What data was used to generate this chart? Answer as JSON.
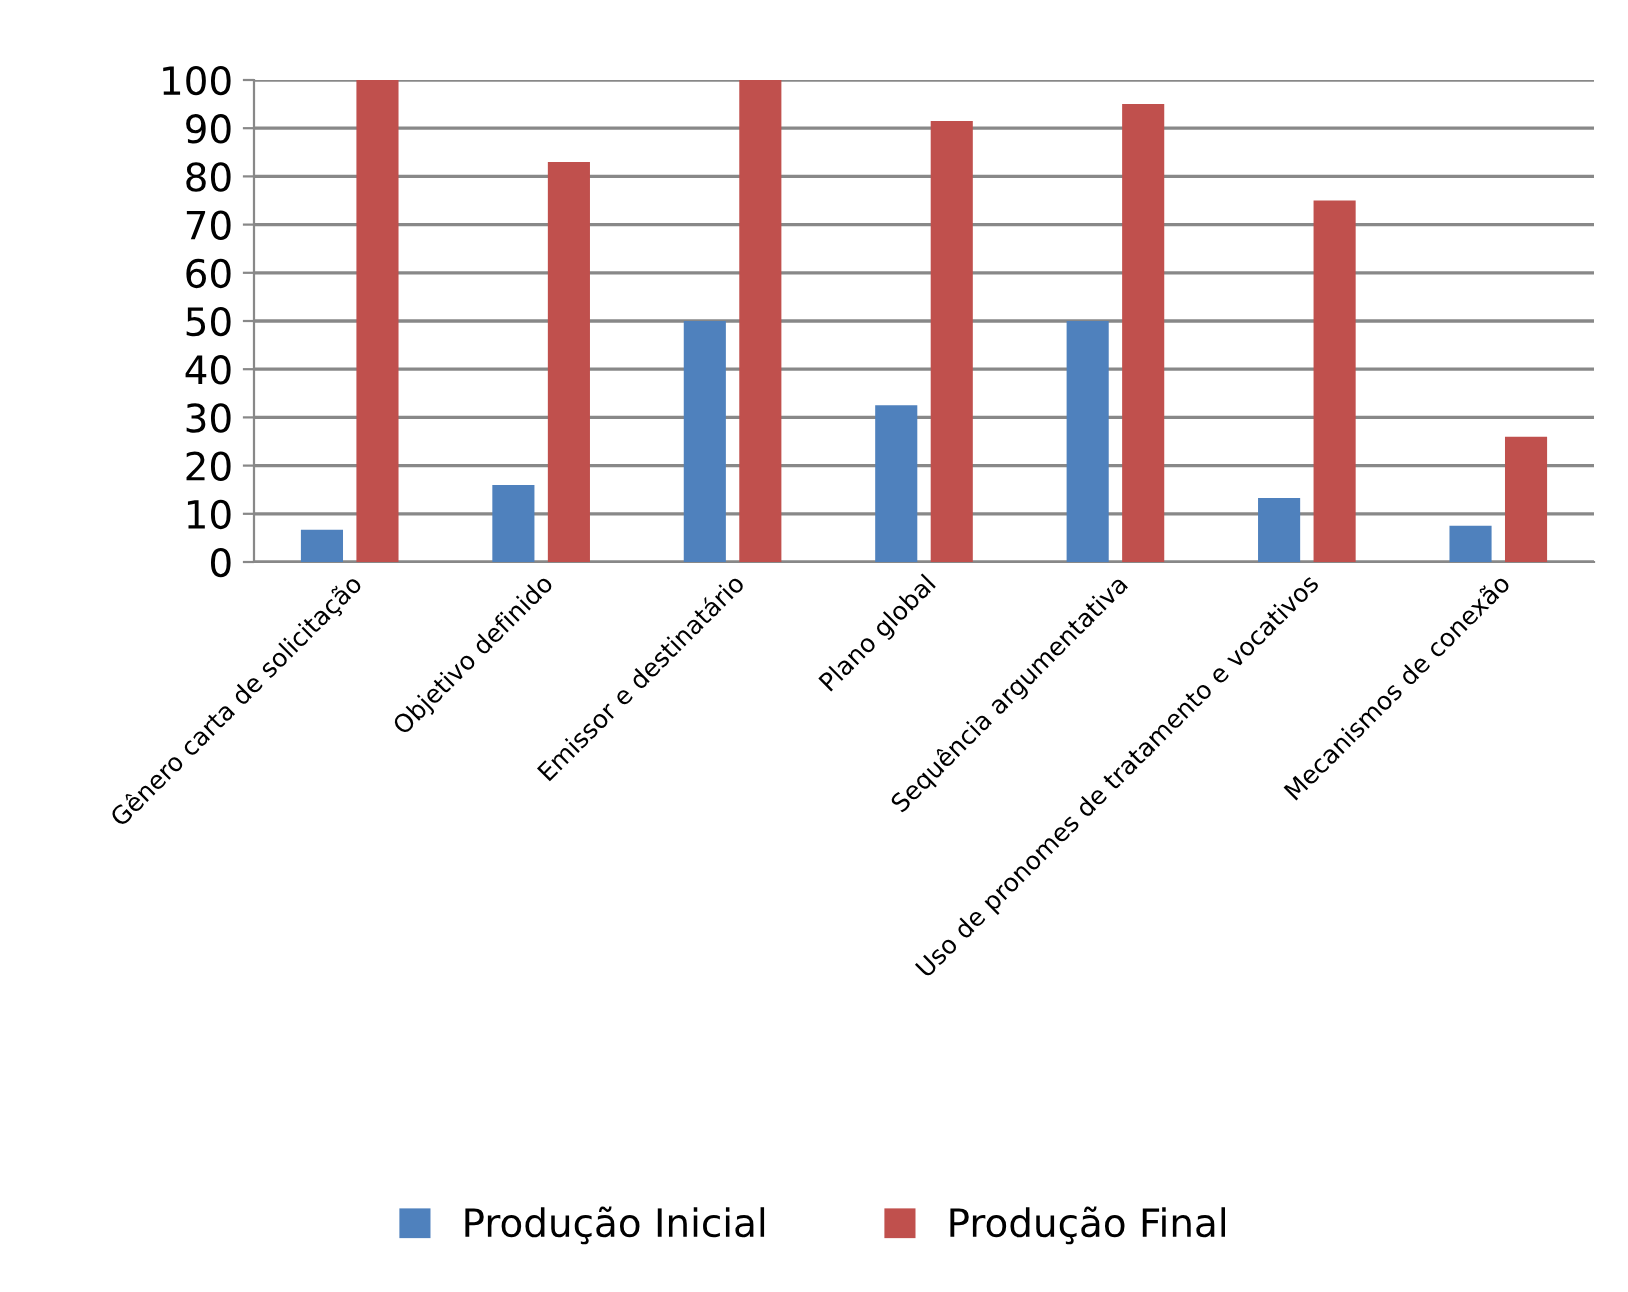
{
  "chart_data": {
    "type": "bar",
    "categories": [
      "Gênero carta de solicitação",
      "Objetivo definido",
      "Emissor e destinatário",
      "Plano global",
      "Sequência argumentativa",
      "Uso de pronomes de tratamento e vocativos",
      "Mecanismos de conexão"
    ],
    "series": [
      {
        "name": "Produção Inicial",
        "color": "#4f81bd",
        "values": [
          6.7,
          16,
          50,
          32.5,
          50,
          13.3,
          7.5
        ]
      },
      {
        "name": "Produção Final",
        "color": "#c0504d",
        "values": [
          100,
          83,
          100,
          91.5,
          95,
          75,
          26
        ]
      }
    ],
    "ylim": [
      0,
      100
    ],
    "yticks": [
      0,
      10,
      20,
      30,
      40,
      50,
      60,
      70,
      80,
      90,
      100
    ],
    "grid": "y",
    "legend": "bottom"
  }
}
